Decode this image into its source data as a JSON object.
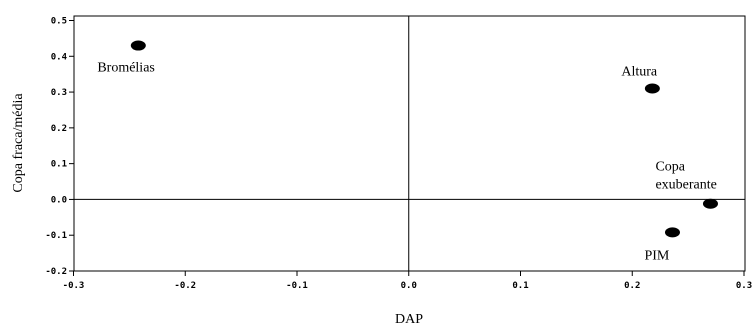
{
  "chart_data": {
    "type": "scatter",
    "title": "",
    "xlabel": "DAP",
    "ylabel": "Copa fraca/média",
    "xlim": [
      -0.3,
      0.3
    ],
    "ylim": [
      -0.2,
      0.5
    ],
    "x_ticks": [
      -0.3,
      -0.2,
      -0.1,
      0.0,
      0.1,
      0.2,
      0.3
    ],
    "x_tick_labels": [
      "-0.3",
      "-0.2",
      "-0.1",
      "0.0",
      "0.1",
      "0.2",
      "0.3"
    ],
    "y_ticks": [
      -0.2,
      -0.1,
      0.0,
      0.1,
      0.2,
      0.3,
      0.4,
      0.5
    ],
    "y_tick_labels": [
      "-0.2",
      "-0.1",
      "0.0",
      "0.1",
      "0.2",
      "0.3",
      "0.4",
      "0.5"
    ],
    "reference_lines": {
      "x": 0.0,
      "y": 0.0
    },
    "grid": false,
    "points": [
      {
        "label": "Bromélias",
        "x": -0.242,
        "y": 0.43
      },
      {
        "label": "Altura",
        "x": 0.218,
        "y": 0.31
      },
      {
        "label": "Copa\nexuberante",
        "label_lines": [
          "Copa",
          "exuberante"
        ],
        "x": 0.27,
        "y": -0.012
      },
      {
        "label": "PIM",
        "x": 0.236,
        "y": -0.092
      }
    ],
    "marker_color": "#000000"
  }
}
